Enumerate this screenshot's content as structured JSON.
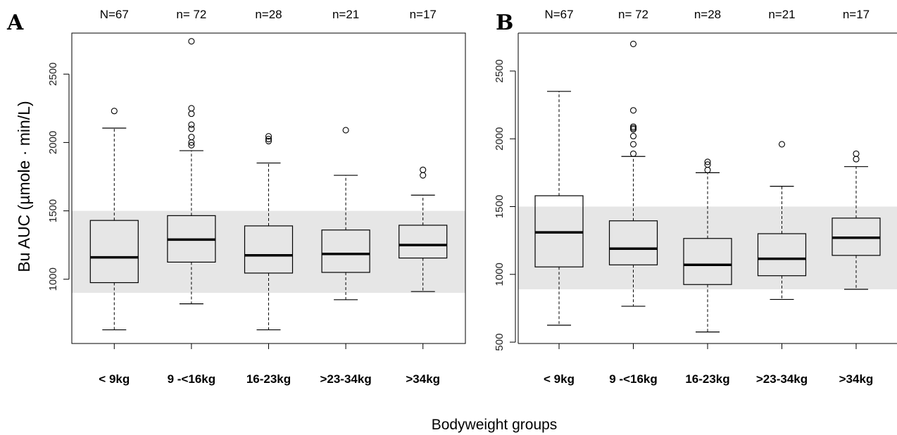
{
  "figure": {
    "panels": [
      "A",
      "B"
    ],
    "ylabel": "Bu AUC (µmole · min/L)",
    "xlabel": "Bodyweight groups"
  },
  "chart_data": [
    {
      "type": "box",
      "panel": "A",
      "categories": [
        "< 9kg",
        "9 -<16kg",
        "16-23kg",
        ">23-34kg",
        ">34kg"
      ],
      "group_n_labels": [
        "N=67",
        "n= 72",
        "n=28",
        "n=21",
        "n=17"
      ],
      "ylabel": "Bu AUC (µmole · min/L)",
      "xlabel": "Bodyweight groups",
      "yticks": [
        1000,
        1500,
        2000,
        2500
      ],
      "ylim": [
        530,
        2800
      ],
      "target_band": [
        900,
        1500
      ],
      "band_color": "#e6e6e6",
      "boxes": [
        {
          "whisker_low": 630,
          "q1": 975,
          "median": 1160,
          "q3": 1430,
          "whisker_high": 2105,
          "outliers": [
            2230
          ]
        },
        {
          "whisker_low": 820,
          "q1": 1125,
          "median": 1290,
          "q3": 1465,
          "whisker_high": 1940,
          "outliers": [
            1980,
            2000,
            2040,
            2100,
            2130,
            2210,
            2250,
            2740
          ]
        },
        {
          "whisker_low": 630,
          "q1": 1045,
          "median": 1175,
          "q3": 1390,
          "whisker_high": 1850,
          "outliers": [
            2010,
            2025,
            2045
          ]
        },
        {
          "whisker_low": 850,
          "q1": 1050,
          "median": 1185,
          "q3": 1360,
          "whisker_high": 1760,
          "outliers": [
            2090
          ]
        },
        {
          "whisker_low": 910,
          "q1": 1155,
          "median": 1250,
          "q3": 1395,
          "whisker_high": 1615,
          "outliers": [
            1760,
            1800
          ]
        }
      ]
    },
    {
      "type": "box",
      "panel": "B",
      "categories": [
        "< 9kg",
        "9 -<16kg",
        "16-23kg",
        ">23-34kg",
        ">34kg"
      ],
      "group_n_labels": [
        "N=67",
        "n= 72",
        "n=28",
        "n=21",
        "n=17"
      ],
      "ylabel": "",
      "xlabel": "Bodyweight groups",
      "yticks": [
        500,
        1000,
        1500,
        2000,
        2500
      ],
      "ylim": [
        490,
        2780
      ],
      "target_band": [
        890,
        1500
      ],
      "band_color": "#e6e6e6",
      "boxes": [
        {
          "whisker_low": 625,
          "q1": 1055,
          "median": 1310,
          "q3": 1580,
          "whisker_high": 2350,
          "outliers": []
        },
        {
          "whisker_low": 765,
          "q1": 1070,
          "median": 1190,
          "q3": 1395,
          "whisker_high": 1870,
          "outliers": [
            1890,
            1960,
            2020,
            2070,
            2080,
            2090,
            2210,
            2700
          ]
        },
        {
          "whisker_low": 575,
          "q1": 925,
          "median": 1070,
          "q3": 1265,
          "whisker_high": 1750,
          "outliers": [
            1770,
            1810,
            1830
          ]
        },
        {
          "whisker_low": 815,
          "q1": 990,
          "median": 1115,
          "q3": 1300,
          "whisker_high": 1650,
          "outliers": [
            1960
          ]
        },
        {
          "whisker_low": 890,
          "q1": 1140,
          "median": 1270,
          "q3": 1415,
          "whisker_high": 1795,
          "outliers": [
            1850,
            1890
          ]
        }
      ]
    }
  ]
}
